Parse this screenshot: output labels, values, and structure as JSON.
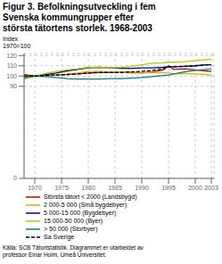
{
  "chart_data": {
    "type": "line",
    "title": "Figur 3. Befolkningsutveckling i fem\nSvenska kommungrupper efter\nstörsta tätortens storlek. 1968-2003",
    "ylabel": "Index\n1970=100",
    "annotations": [
      "Källa: SCB Tätortstatistik. Diagrammet er utarbeidet av\nprofessor Einar Holm, Umeå Universitet."
    ],
    "x": [
      1968,
      1970,
      1972,
      1974,
      1976,
      1978,
      1980,
      1982,
      1984,
      1986,
      1988,
      1990,
      1992,
      1994,
      1995,
      1996,
      1998,
      2000,
      2002,
      2003
    ],
    "series": [
      {
        "name": "Största tätort < 2000 (Landsbygd)",
        "color": "#cc0000",
        "line_style": "solid",
        "values": [
          101.5,
          100,
          100.5,
          101,
          101.5,
          102,
          103,
          103.5,
          103.5,
          103.5,
          103.5,
          103.2,
          104,
          106,
          110,
          106.5,
          107,
          106,
          105,
          104.5
        ]
      },
      {
        "name": "2 000-5 000 (Små bygdebyer)",
        "color": "#ddaa00",
        "line_style": "solid",
        "values": [
          97.5,
          100,
          101,
          101.5,
          102,
          103,
          104.5,
          104.5,
          104,
          103.5,
          103,
          103,
          103.5,
          103.2,
          103,
          102,
          102.5,
          102,
          101.5,
          101
        ]
      },
      {
        "name": "5 000-15 000 (Bygdebyer)",
        "color": "#000099",
        "line_style": "solid",
        "values": [
          98.5,
          100,
          101.5,
          103,
          105,
          106.5,
          108,
          108.5,
          108,
          107.5,
          107.5,
          108,
          108,
          108.5,
          109,
          109,
          109.5,
          110,
          111,
          111
        ]
      },
      {
        "name": "15 000-50 000 (Byer)",
        "color": "#aacc00",
        "line_style": "solid",
        "values": [
          97,
          100,
          102.5,
          104.5,
          106,
          107,
          108.5,
          108.5,
          108,
          108.5,
          109.5,
          111,
          112.5,
          113,
          113.5,
          113.5,
          114,
          115,
          116,
          116.5
        ]
      },
      {
        "name": "> 50 000 (Storbyer)",
        "color": "#008080",
        "line_style": "solid",
        "values": [
          98.5,
          100,
          99.5,
          98.5,
          97.5,
          97,
          97,
          97,
          97.5,
          97.5,
          98,
          98.5,
          99.5,
          100.5,
          101,
          102,
          104,
          105.5,
          106.5,
          107
        ]
      },
      {
        "name": "Sa Sverige",
        "color": "#000000",
        "line_style": "dashed",
        "values": [
          100.2,
          100,
          100.5,
          101,
          101.5,
          102,
          103,
          103.5,
          103.5,
          103.5,
          104,
          104.5,
          105.5,
          107,
          109,
          109,
          109.5,
          110,
          111,
          111
        ]
      }
    ],
    "xlim": [
      1968,
      2003.5
    ],
    "xticks": [
      1970,
      1975,
      1980,
      1985,
      1990,
      1995,
      2000,
      2003
    ],
    "ylim": [
      0,
      122
    ],
    "yticks": [
      0,
      90,
      100,
      110,
      120
    ],
    "grid": true,
    "legend": "bottom"
  }
}
